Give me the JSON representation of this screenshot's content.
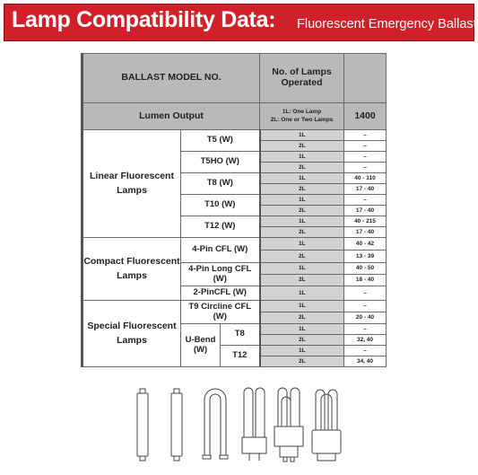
{
  "banner": {
    "title": "Lamp Compatibility Data:",
    "subtitle": "Fluorescent Emergency Ballast",
    "bg_color": "#d0202a"
  },
  "header": {
    "ballast_model": "BALLAST MODEL NO.",
    "num_lamps": "No. of Lamps Operated",
    "lumen_output": "Lumen Output",
    "legend_1l": "1L: One Lamp",
    "legend_2l": "2L: One or Two Lamps",
    "lumen_value": "1400"
  },
  "groups": {
    "linear": "Linear Fluorescent Lamps",
    "compact": "Compact Fluorescent Lamps",
    "special": "Special Fluorescent Lamps"
  },
  "types": {
    "t5": "T5 (W)",
    "t5ho": "T5HO (W)",
    "t8": "T8 (W)",
    "t10": "T10 (W)",
    "t12": "T12 (W)",
    "pin4": "4-Pin CFL (W)",
    "pin4long": "4-Pin Long CFL (W)",
    "pin2": "2-PinCFL (W)",
    "t9": "T9 Circline CFL (W)",
    "ubend": "U-Bend (W)",
    "ubend_t8": "T8",
    "ubend_t12": "T12"
  },
  "rows": [
    {
      "lamps": "1L",
      "value": "–"
    },
    {
      "lamps": "2L",
      "value": "–"
    },
    {
      "lamps": "1L",
      "value": "–"
    },
    {
      "lamps": "2L",
      "value": "–"
    },
    {
      "lamps": "1L",
      "value": "40 - 110"
    },
    {
      "lamps": "2L",
      "value": "17 - 40"
    },
    {
      "lamps": "1L",
      "value": "–"
    },
    {
      "lamps": "2L",
      "value": "17 - 40"
    },
    {
      "lamps": "1L",
      "value": "40 - 215"
    },
    {
      "lamps": "2L",
      "value": "17 - 40"
    },
    {
      "lamps": "1L",
      "value": "40 - 42"
    },
    {
      "lamps": "2L",
      "value": "13 - 39"
    },
    {
      "lamps": "1L",
      "value": "40 - 50"
    },
    {
      "lamps": "2L",
      "value": "18 - 40"
    },
    {
      "lamps": "1L",
      "value": "–"
    },
    {
      "lamps": "1L",
      "value": "–"
    },
    {
      "lamps": "2L",
      "value": "20 - 40"
    },
    {
      "lamps": "1L",
      "value": "–"
    },
    {
      "lamps": "2L",
      "value": "32, 40"
    },
    {
      "lamps": "1L",
      "value": "–"
    },
    {
      "lamps": "2L",
      "value": "34, 40"
    }
  ],
  "lamp_icons": [
    "linear-tube-icon",
    "linear-tube-icon",
    "u-bend-lamp-icon",
    "cfl-2pin-lamp-icon",
    "cfl-4pin-quad-lamp-icon",
    "cfl-quad-lamp-icon"
  ]
}
